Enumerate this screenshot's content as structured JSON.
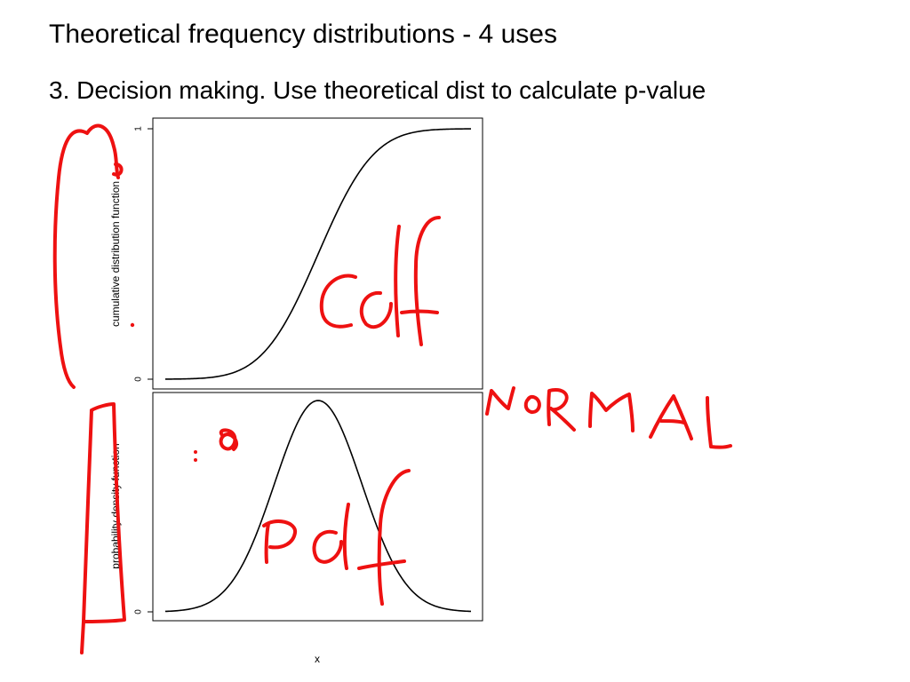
{
  "slide": {
    "title": "Theoretical frequency distributions - 4 uses",
    "subtitle": "3. Decision making. Use theoretical dist to calculate p-value"
  },
  "chart_data": [
    {
      "type": "line",
      "name": "cdf-panel",
      "ylabel": "cumulative distribution function",
      "xlabel": "",
      "yticks": [
        {
          "value": 0,
          "label": "0"
        },
        {
          "value": 1,
          "label": "1"
        }
      ],
      "xlim": [
        -3.5,
        3.5
      ],
      "ylim": [
        0,
        1
      ],
      "series": [
        {
          "function": "normal-cdf",
          "mean": 0,
          "sd": 1
        }
      ]
    },
    {
      "type": "line",
      "name": "pdf-panel",
      "ylabel": "probability density function",
      "xlabel": "x",
      "yticks": [
        {
          "value": 0,
          "label": "0"
        }
      ],
      "xlim": [
        -3.5,
        3.5
      ],
      "ylim": [
        0,
        0.399
      ],
      "series": [
        {
          "function": "normal-pdf",
          "mean": 0,
          "sd": 1
        }
      ]
    }
  ],
  "annotations": {
    "cdf_label": "cdf",
    "pdf_label": "pdf",
    "normal_label": "NORMAL",
    "color": "#ee1111",
    "line_color": "#000000"
  }
}
